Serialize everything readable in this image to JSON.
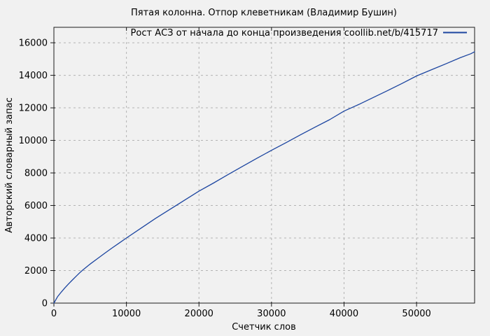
{
  "window": {
    "background_color": "#f1f1f1",
    "border_color": "#1a1a1a"
  },
  "chart_data": {
    "type": "line",
    "title": "Пятая колонна. Отпор клеветникам (Владимир Бушин)",
    "xlabel": "Счетчик слов",
    "ylabel": "Авторский словарный запас",
    "xlim": [
      0,
      58000
    ],
    "ylim": [
      0,
      16950
    ],
    "xticks": [
      0,
      10000,
      20000,
      30000,
      40000,
      50000
    ],
    "yticks": [
      0,
      2000,
      4000,
      6000,
      8000,
      10000,
      12000,
      14000,
      16000
    ],
    "grid": true,
    "grid_color": "#b3b3b3",
    "legend": {
      "label": "Рост АСЗ от начала до конца произведения  coollib.net/b/415717",
      "position": "top-right",
      "line_color": "#1c45a0"
    },
    "series": [
      {
        "name": "Рост АСЗ",
        "color": "#1c45a0",
        "points": [
          [
            0,
            0
          ],
          [
            500,
            390
          ],
          [
            1000,
            670
          ],
          [
            1500,
            930
          ],
          [
            2000,
            1170
          ],
          [
            2500,
            1400
          ],
          [
            3000,
            1620
          ],
          [
            3500,
            1840
          ],
          [
            4000,
            2040
          ],
          [
            5000,
            2400
          ],
          [
            6000,
            2730
          ],
          [
            7000,
            3060
          ],
          [
            8000,
            3380
          ],
          [
            9000,
            3690
          ],
          [
            10000,
            4000
          ],
          [
            12000,
            4600
          ],
          [
            14000,
            5200
          ],
          [
            16000,
            5760
          ],
          [
            18000,
            6320
          ],
          [
            20000,
            6880
          ],
          [
            22000,
            7380
          ],
          [
            24000,
            7900
          ],
          [
            26000,
            8400
          ],
          [
            28000,
            8900
          ],
          [
            30000,
            9390
          ],
          [
            32000,
            9860
          ],
          [
            34000,
            10340
          ],
          [
            36000,
            10810
          ],
          [
            38000,
            11270
          ],
          [
            40000,
            11800
          ],
          [
            42000,
            12200
          ],
          [
            44000,
            12630
          ],
          [
            46000,
            13060
          ],
          [
            48000,
            13500
          ],
          [
            50000,
            13960
          ],
          [
            52000,
            14330
          ],
          [
            54000,
            14700
          ],
          [
            56000,
            15080
          ],
          [
            57500,
            15330
          ],
          [
            58000,
            15450
          ]
        ]
      }
    ]
  }
}
